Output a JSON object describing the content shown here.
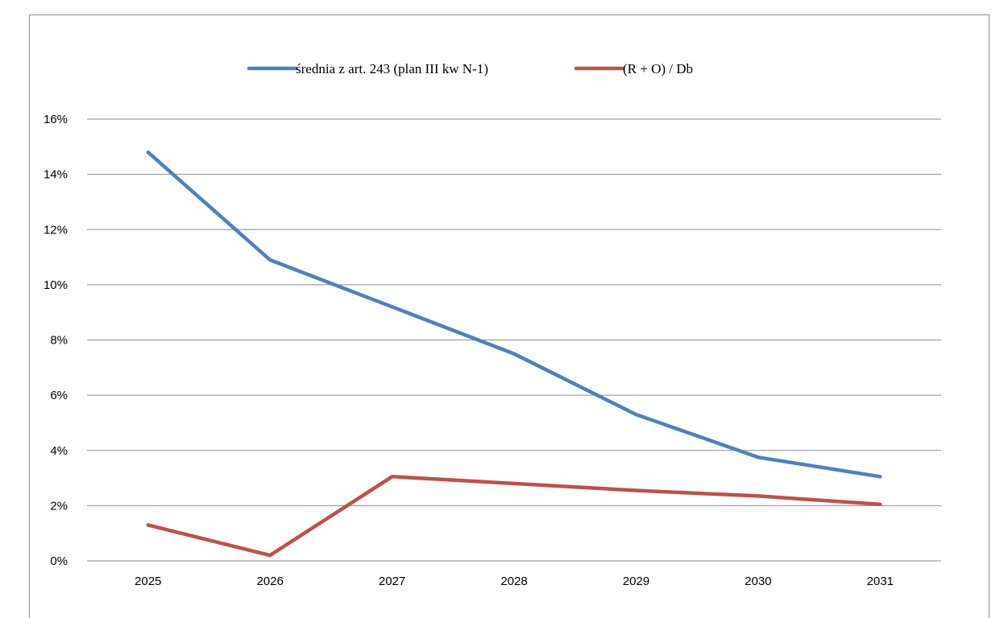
{
  "chart_data": {
    "type": "line",
    "categories": [
      "2025",
      "2026",
      "2027",
      "2028",
      "2029",
      "2030",
      "2031"
    ],
    "series": [
      {
        "name": "średnia z art. 243 (plan III kw N-1)",
        "color": "#4f81bd",
        "values": [
          14.8,
          10.9,
          9.2,
          7.5,
          5.3,
          3.75,
          3.05
        ]
      },
      {
        "name": "(R + O) / Db",
        "color": "#c0504d",
        "values": [
          1.3,
          0.2,
          3.05,
          2.8,
          2.55,
          2.35,
          2.05
        ]
      }
    ],
    "y_ticks": [
      "0%",
      "2%",
      "4%",
      "6%",
      "8%",
      "10%",
      "12%",
      "14%",
      "16%"
    ],
    "ylim": [
      0,
      16
    ],
    "y_unit": "%",
    "grid": true,
    "legend_position": "top"
  }
}
